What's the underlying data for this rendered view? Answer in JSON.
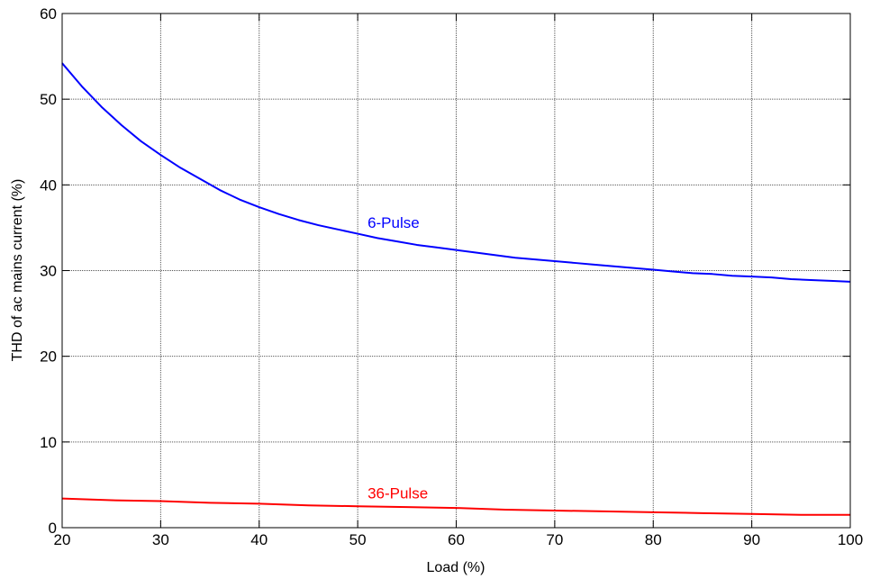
{
  "chart_data": {
    "type": "line",
    "title": "",
    "xlabel": "Load (%)",
    "ylabel": "THD of ac mains current (%)",
    "xlim": [
      20,
      100
    ],
    "ylim": [
      0,
      60
    ],
    "xticks": [
      20,
      30,
      40,
      50,
      60,
      70,
      80,
      90,
      100
    ],
    "yticks": [
      0,
      10,
      20,
      30,
      40,
      50,
      60
    ],
    "grid": true,
    "legend": "none",
    "series": [
      {
        "name": "6-Pulse",
        "color": "#0000ff",
        "x": [
          20,
          22,
          24,
          26,
          28,
          30,
          32,
          34,
          36,
          38,
          40,
          42,
          44,
          46,
          48,
          50,
          52,
          54,
          56,
          58,
          60,
          62,
          64,
          66,
          68,
          70,
          72,
          74,
          76,
          78,
          80,
          82,
          84,
          86,
          88,
          90,
          92,
          94,
          96,
          98,
          100
        ],
        "y": [
          54.2,
          51.5,
          49.1,
          47.0,
          45.1,
          43.5,
          42.0,
          40.7,
          39.4,
          38.3,
          37.4,
          36.6,
          35.9,
          35.3,
          34.8,
          34.3,
          33.8,
          33.4,
          33.0,
          32.7,
          32.4,
          32.1,
          31.8,
          31.5,
          31.3,
          31.1,
          30.9,
          30.7,
          30.5,
          30.3,
          30.1,
          29.9,
          29.7,
          29.6,
          29.4,
          29.3,
          29.2,
          29.0,
          28.9,
          28.8,
          28.7
        ]
      },
      {
        "name": "36-Pulse",
        "color": "#ff0000",
        "x": [
          20,
          25,
          30,
          35,
          40,
          45,
          50,
          55,
          60,
          65,
          70,
          75,
          80,
          85,
          90,
          95,
          100
        ],
        "y": [
          3.4,
          3.2,
          3.1,
          2.9,
          2.8,
          2.6,
          2.5,
          2.4,
          2.3,
          2.1,
          2.0,
          1.9,
          1.8,
          1.7,
          1.6,
          1.5,
          1.5
        ]
      }
    ],
    "annotations": [
      {
        "text": "6-Pulse",
        "x": 51,
        "y": 35.0,
        "color": "#0000ff"
      },
      {
        "text": "36-Pulse",
        "x": 51,
        "y": 3.4,
        "color": "#ff0000"
      }
    ]
  }
}
